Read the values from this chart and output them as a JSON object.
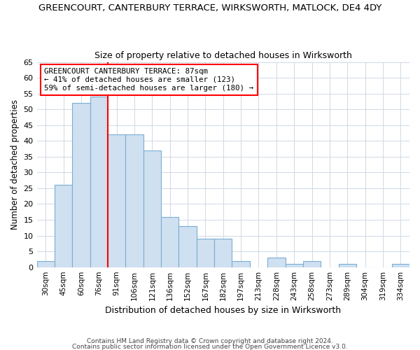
{
  "title1": "GREENCOURT, CANTERBURY TERRACE, WIRKSWORTH, MATLOCK, DE4 4DY",
  "title2": "Size of property relative to detached houses in Wirksworth",
  "xlabel": "Distribution of detached houses by size in Wirksworth",
  "ylabel": "Number of detached properties",
  "categories": [
    "30sqm",
    "45sqm",
    "60sqm",
    "76sqm",
    "91sqm",
    "106sqm",
    "121sqm",
    "136sqm",
    "152sqm",
    "167sqm",
    "182sqm",
    "197sqm",
    "213sqm",
    "228sqm",
    "243sqm",
    "258sqm",
    "273sqm",
    "289sqm",
    "304sqm",
    "319sqm",
    "334sqm"
  ],
  "values": [
    2,
    26,
    52,
    54,
    42,
    42,
    37,
    16,
    13,
    9,
    9,
    2,
    0,
    3,
    1,
    2,
    0,
    1,
    0,
    0,
    1
  ],
  "bar_color": "#cfe0f0",
  "bar_edge_color": "#7aadd4",
  "property_line_x": 4.0,
  "property_line_color": "red",
  "annotation_line1": "GREENCOURT CANTERBURY TERRACE: 87sqm",
  "annotation_line2": "← 41% of detached houses are smaller (123)",
  "annotation_line3": "59% of semi-detached houses are larger (180) →",
  "annotation_box_color": "white",
  "annotation_box_edge": "red",
  "ylim": [
    0,
    65
  ],
  "yticks": [
    0,
    5,
    10,
    15,
    20,
    25,
    30,
    35,
    40,
    45,
    50,
    55,
    60,
    65
  ],
  "footer1": "Contains HM Land Registry data © Crown copyright and database right 2024.",
  "footer2": "Contains public sector information licensed under the Open Government Licence v3.0.",
  "bg_color": "#ffffff",
  "plot_bg_color": "#ffffff",
  "grid_color": "#d0d8e4"
}
